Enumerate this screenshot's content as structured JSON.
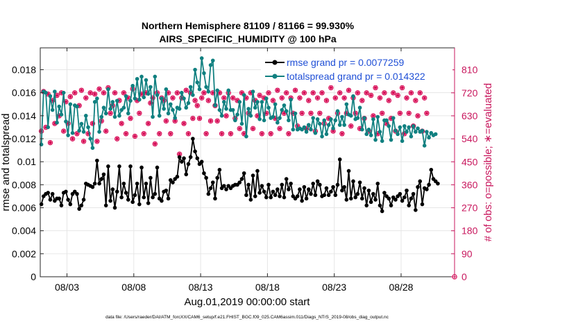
{
  "chart_data": {
    "type": "line",
    "title": "Northern Hemisphere 81109 / 81166 = 99.930%",
    "subtitle": "AIRS_SPECIFIC_HUMIDITY @ 100 hPa",
    "xlabel": "Aug.01,2019 00:00:00 start",
    "ylabel_left": "rmse and totalspread",
    "ylabel_right": "# of obs: o=possible; ∗=evaluated",
    "footer": "data file: /Users/raeder/DAI/ATM_forcXX/CAM6_setup/f.e21.FHIST_BGC.f09_025.CAM6assim.011/Diags_NTrS_2019-08/obs_diag_output.nc",
    "x_tick_labels": [
      "08/03",
      "08/08",
      "08/13",
      "08/18",
      "08/23",
      "08/28"
    ],
    "x_tick_days": [
      3,
      8,
      13,
      18,
      23,
      28
    ],
    "xlim_days": [
      1,
      32
    ],
    "y_left_ticks": [
      "0",
      "0.002",
      "0.004",
      "0.006",
      "0.008",
      "0.01",
      "0.012",
      "0.014",
      "0.016",
      "0.018"
    ],
    "ylim_left": [
      0,
      0.0199
    ],
    "y_right_ticks": [
      "0",
      "90",
      "180",
      "270",
      "360",
      "450",
      "540",
      "630",
      "720",
      "810"
    ],
    "ylim_right": [
      0,
      896
    ],
    "grid": true,
    "legend_position": "top-right",
    "colors": {
      "rmse": "#000000",
      "spread": "#108080",
      "obs": "#d6004f",
      "axis_right": "#c8175d"
    },
    "series": [
      {
        "name": "rmse grand pr = 0.0077259",
        "values": [
          0.0063,
          0.007,
          0.0072,
          0.0073,
          0.0067,
          0.0072,
          0.0066,
          0.0068,
          0.0068,
          0.0062,
          0.0073,
          0.0074,
          0.0067,
          0.0063,
          0.0072,
          0.0074,
          0.0072,
          0.0059,
          0.0062,
          0.0067,
          0.0081,
          0.008,
          0.0079,
          0.0078,
          0.0081,
          0.0101,
          0.0081,
          0.0085,
          0.0089,
          0.0062,
          0.0096,
          0.0066,
          0.0076,
          0.006,
          0.0074,
          0.0096,
          0.0069,
          0.0081,
          0.0073,
          0.0067,
          0.0096,
          0.0065,
          0.0071,
          0.0081,
          0.0063,
          0.0095,
          0.0069,
          0.0081,
          0.0064,
          0.0086,
          0.0069,
          0.0072,
          0.0095,
          0.0068,
          0.0066,
          0.0074,
          0.0075,
          0.0068,
          0.0084,
          0.0082,
          0.0085,
          0.0087,
          0.0104,
          0.01,
          0.0103,
          0.0089,
          0.0098,
          0.0104,
          0.012,
          0.0109,
          0.0103,
          0.0098,
          0.01,
          0.009,
          0.0086,
          0.0072,
          0.0077,
          0.0082,
          0.0068,
          0.0086,
          0.0093,
          0.0077,
          0.0079,
          0.0076,
          0.0079,
          0.0077,
          0.0079,
          0.008,
          0.008,
          0.0082,
          0.0085,
          0.009,
          0.0071,
          0.008,
          0.0067,
          0.0088,
          0.007,
          0.0092,
          0.0073,
          0.0079,
          0.0074,
          0.0069,
          0.008,
          0.0069,
          0.0074,
          0.0071,
          0.0076,
          0.007,
          0.008,
          0.0069,
          0.0085,
          0.0076,
          0.0081,
          0.007,
          0.0068,
          0.007,
          0.0076,
          0.0066,
          0.0078,
          0.0068,
          0.0076,
          0.0072,
          0.0081,
          0.0071,
          0.0083,
          0.008,
          0.007,
          0.0071,
          0.0077,
          0.0071,
          0.0074,
          0.0078,
          0.0071,
          0.008,
          0.0102,
          0.0075,
          0.0078,
          0.0067,
          0.0092,
          0.0068,
          0.0083,
          0.0069,
          0.0072,
          0.0082,
          0.0068,
          0.0077,
          0.0062,
          0.0075,
          0.0065,
          0.0072,
          0.0067,
          0.0081,
          0.0062,
          0.0057,
          0.0073,
          0.007,
          0.0068,
          0.0062,
          0.0069,
          0.0067,
          0.007,
          0.0072,
          0.0066,
          0.0069,
          0.0075,
          0.0062,
          0.0068,
          0.0072,
          0.0058,
          0.0078,
          0.0083,
          0.0063,
          0.0077,
          0.0076,
          0.008,
          0.0093,
          0.0085,
          0.0083,
          0.0081
        ]
      },
      {
        "name": "totalspread grand pr = 0.014322",
        "values": [
          0.0115,
          0.0161,
          0.016,
          0.013,
          0.0157,
          0.0145,
          0.0161,
          0.0134,
          0.0148,
          0.0141,
          0.016,
          0.0135,
          0.0123,
          0.015,
          0.0125,
          0.0149,
          0.0148,
          0.0127,
          0.0133,
          0.0126,
          0.014,
          0.013,
          0.012,
          0.0112,
          0.0152,
          0.0155,
          0.0126,
          0.0139,
          0.0147,
          0.0142,
          0.0163,
          0.0146,
          0.0152,
          0.0139,
          0.0153,
          0.014,
          0.0145,
          0.0147,
          0.0157,
          0.0142,
          0.0153,
          0.0166,
          0.0155,
          0.0172,
          0.0154,
          0.0174,
          0.0156,
          0.0171,
          0.0159,
          0.0165,
          0.0139,
          0.0174,
          0.0158,
          0.014,
          0.0155,
          0.0146,
          0.0163,
          0.0142,
          0.015,
          0.0145,
          0.0138,
          0.0147,
          0.0146,
          0.016,
          0.0155,
          0.0147,
          0.0151,
          0.0165,
          0.0158,
          0.018,
          0.0169,
          0.0163,
          0.019,
          0.0177,
          0.0165,
          0.0161,
          0.0184,
          0.0188,
          0.0149,
          0.0162,
          0.0145,
          0.014,
          0.0152,
          0.0146,
          0.0162,
          0.0145,
          0.0145,
          0.0136,
          0.0141,
          0.0152,
          0.0133,
          0.0158,
          0.0122,
          0.0146,
          0.014,
          0.0161,
          0.0147,
          0.0152,
          0.0137,
          0.0152,
          0.0136,
          0.0155,
          0.0147,
          0.0138,
          0.0139,
          0.015,
          0.0134,
          0.0138,
          0.0145,
          0.0149,
          0.0144,
          0.0136,
          0.0154,
          0.0128,
          0.0142,
          0.0128,
          0.0129,
          0.0128,
          0.013,
          0.0126,
          0.0132,
          0.0128,
          0.0138,
          0.0125,
          0.0137,
          0.0133,
          0.0122,
          0.0136,
          0.0124,
          0.0132,
          0.0137,
          0.0129,
          0.0136,
          0.0144,
          0.0132,
          0.0139,
          0.0132,
          0.015,
          0.0141,
          0.014,
          0.0157,
          0.0137,
          0.0138,
          0.0147,
          0.0128,
          0.0138,
          0.0124,
          0.0128,
          0.0123,
          0.0137,
          0.0119,
          0.0139,
          0.0126,
          0.0118,
          0.0136,
          0.0136,
          0.0131,
          0.0119,
          0.0138,
          0.0127,
          0.0124,
          0.013,
          0.0118,
          0.0131,
          0.0126,
          0.013,
          0.0122,
          0.0131,
          0.0126,
          0.0129,
          0.0126,
          0.0127,
          0.0114,
          0.0126,
          0.0121,
          0.0125,
          0.0123,
          0.0124
        ]
      },
      {
        "name": "possible",
        "values": [
          570,
          725,
          585,
          715,
          525,
          690,
          600,
          710,
          630,
          720,
          570,
          685,
          600,
          705,
          540,
          720,
          560,
          670,
          730,
          530,
          700,
          560,
          720,
          600,
          715,
          530,
          735,
          610,
          720,
          570,
          740,
          640,
          670,
          720,
          540,
          690,
          600,
          720,
          560,
          700,
          620,
          735,
          550,
          690,
          640,
          715,
          560,
          720,
          600,
          680,
          700,
          520,
          720,
          560,
          700,
          690,
          610,
          720,
          560,
          700,
          610,
          720,
          480,
          700,
          600,
          730,
          560,
          720,
          620,
          690,
          670,
          620,
          700,
          720,
          560,
          690,
          610,
          720,
          670,
          610,
          720,
          560,
          700,
          630,
          720,
          560,
          700,
          620,
          690,
          580,
          720,
          560,
          700,
          640,
          720,
          580,
          690,
          630,
          710,
          560,
          700,
          640,
          720,
          560,
          690,
          620,
          730,
          580,
          700,
          640,
          720,
          560,
          700,
          640,
          730,
          590,
          700,
          640,
          720,
          580,
          690,
          640,
          720,
          570,
          700,
          640,
          720,
          600,
          690,
          620,
          740,
          570,
          700,
          640,
          720,
          560,
          700,
          640,
          730,
          590,
          700,
          640,
          720,
          580,
          690,
          620,
          720,
          570,
          710,
          630,
          740,
          560,
          700,
          640,
          720,
          600,
          690,
          620,
          720,
          570,
          710,
          640,
          740,
          560,
          700,
          640,
          720,
          590,
          690,
          630,
          720,
          570,
          700,
          640
        ]
      },
      {
        "name": "evaluated",
        "values": [
          570,
          725,
          585,
          715,
          525,
          690,
          600,
          710,
          630,
          720,
          570,
          685,
          600,
          705,
          540,
          720,
          560,
          670,
          730,
          530,
          700,
          560,
          720,
          600,
          715,
          530,
          735,
          610,
          720,
          570,
          740,
          640,
          670,
          720,
          540,
          690,
          600,
          720,
          560,
          700,
          620,
          735,
          550,
          690,
          640,
          715,
          560,
          720,
          600,
          680,
          700,
          520,
          720,
          560,
          700,
          690,
          610,
          720,
          560,
          700,
          610,
          720,
          480,
          700,
          600,
          730,
          560,
          720,
          620,
          690,
          670,
          620,
          700,
          720,
          560,
          690,
          610,
          720,
          670,
          610,
          720,
          560,
          700,
          630,
          720,
          560,
          700,
          620,
          690,
          580,
          720,
          560,
          700,
          640,
          720,
          580,
          690,
          630,
          710,
          560,
          700,
          640,
          720,
          560,
          690,
          620,
          730,
          580,
          700,
          640,
          720,
          560,
          700,
          640,
          730,
          590,
          700,
          640,
          720,
          580,
          690,
          640,
          720,
          570,
          700,
          640,
          720,
          600,
          690,
          620,
          740,
          570,
          700,
          640,
          720,
          560,
          700,
          640,
          730,
          590,
          700,
          640,
          720,
          580,
          690,
          620,
          720,
          570,
          710,
          630,
          740,
          560,
          700,
          640,
          720,
          600,
          690,
          620,
          720,
          570,
          710,
          640,
          740,
          560,
          700,
          640,
          720,
          590,
          690,
          630,
          720,
          570,
          700,
          640
        ]
      }
    ],
    "annotations": [
      {
        "series": "possible",
        "x_day": 32,
        "value": 0
      }
    ]
  }
}
